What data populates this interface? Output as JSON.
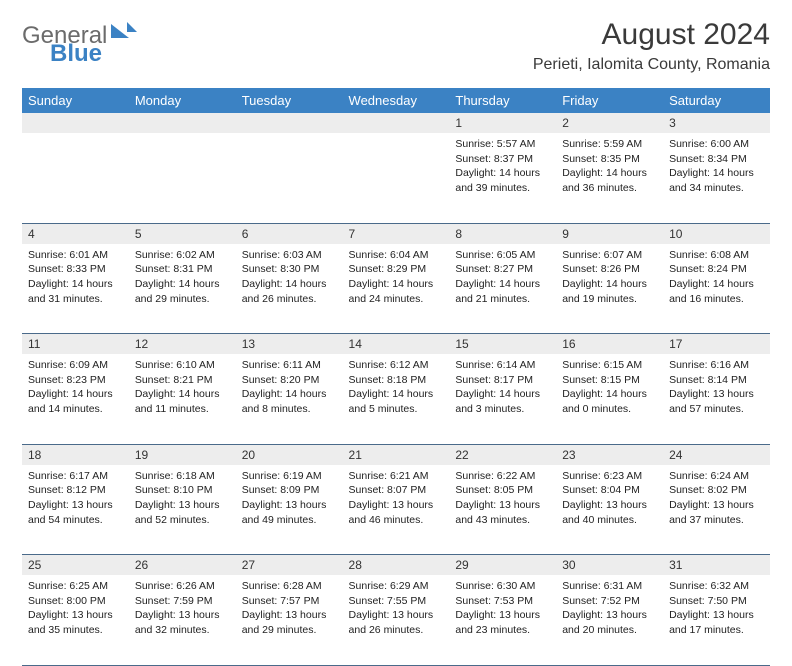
{
  "logo": {
    "part1": "General",
    "part2": "Blue"
  },
  "title": "August 2024",
  "location": "Perieti, Ialomita County, Romania",
  "weekdays": [
    "Sunday",
    "Monday",
    "Tuesday",
    "Wednesday",
    "Thursday",
    "Friday",
    "Saturday"
  ],
  "colors": {
    "header_bg": "#3b82c4",
    "header_text": "#ffffff",
    "daynum_bg": "#ededed",
    "cell_border": "#4a6a8a",
    "logo_gray": "#6b6b6b",
    "logo_blue": "#3b82c4"
  },
  "weeks": [
    [
      null,
      null,
      null,
      null,
      {
        "n": "1",
        "sunrise": "5:57 AM",
        "sunset": "8:37 PM",
        "daylight": "14 hours and 39 minutes."
      },
      {
        "n": "2",
        "sunrise": "5:59 AM",
        "sunset": "8:35 PM",
        "daylight": "14 hours and 36 minutes."
      },
      {
        "n": "3",
        "sunrise": "6:00 AM",
        "sunset": "8:34 PM",
        "daylight": "14 hours and 34 minutes."
      }
    ],
    [
      {
        "n": "4",
        "sunrise": "6:01 AM",
        "sunset": "8:33 PM",
        "daylight": "14 hours and 31 minutes."
      },
      {
        "n": "5",
        "sunrise": "6:02 AM",
        "sunset": "8:31 PM",
        "daylight": "14 hours and 29 minutes."
      },
      {
        "n": "6",
        "sunrise": "6:03 AM",
        "sunset": "8:30 PM",
        "daylight": "14 hours and 26 minutes."
      },
      {
        "n": "7",
        "sunrise": "6:04 AM",
        "sunset": "8:29 PM",
        "daylight": "14 hours and 24 minutes."
      },
      {
        "n": "8",
        "sunrise": "6:05 AM",
        "sunset": "8:27 PM",
        "daylight": "14 hours and 21 minutes."
      },
      {
        "n": "9",
        "sunrise": "6:07 AM",
        "sunset": "8:26 PM",
        "daylight": "14 hours and 19 minutes."
      },
      {
        "n": "10",
        "sunrise": "6:08 AM",
        "sunset": "8:24 PM",
        "daylight": "14 hours and 16 minutes."
      }
    ],
    [
      {
        "n": "11",
        "sunrise": "6:09 AM",
        "sunset": "8:23 PM",
        "daylight": "14 hours and 14 minutes."
      },
      {
        "n": "12",
        "sunrise": "6:10 AM",
        "sunset": "8:21 PM",
        "daylight": "14 hours and 11 minutes."
      },
      {
        "n": "13",
        "sunrise": "6:11 AM",
        "sunset": "8:20 PM",
        "daylight": "14 hours and 8 minutes."
      },
      {
        "n": "14",
        "sunrise": "6:12 AM",
        "sunset": "8:18 PM",
        "daylight": "14 hours and 5 minutes."
      },
      {
        "n": "15",
        "sunrise": "6:14 AM",
        "sunset": "8:17 PM",
        "daylight": "14 hours and 3 minutes."
      },
      {
        "n": "16",
        "sunrise": "6:15 AM",
        "sunset": "8:15 PM",
        "daylight": "14 hours and 0 minutes."
      },
      {
        "n": "17",
        "sunrise": "6:16 AM",
        "sunset": "8:14 PM",
        "daylight": "13 hours and 57 minutes."
      }
    ],
    [
      {
        "n": "18",
        "sunrise": "6:17 AM",
        "sunset": "8:12 PM",
        "daylight": "13 hours and 54 minutes."
      },
      {
        "n": "19",
        "sunrise": "6:18 AM",
        "sunset": "8:10 PM",
        "daylight": "13 hours and 52 minutes."
      },
      {
        "n": "20",
        "sunrise": "6:19 AM",
        "sunset": "8:09 PM",
        "daylight": "13 hours and 49 minutes."
      },
      {
        "n": "21",
        "sunrise": "6:21 AM",
        "sunset": "8:07 PM",
        "daylight": "13 hours and 46 minutes."
      },
      {
        "n": "22",
        "sunrise": "6:22 AM",
        "sunset": "8:05 PM",
        "daylight": "13 hours and 43 minutes."
      },
      {
        "n": "23",
        "sunrise": "6:23 AM",
        "sunset": "8:04 PM",
        "daylight": "13 hours and 40 minutes."
      },
      {
        "n": "24",
        "sunrise": "6:24 AM",
        "sunset": "8:02 PM",
        "daylight": "13 hours and 37 minutes."
      }
    ],
    [
      {
        "n": "25",
        "sunrise": "6:25 AM",
        "sunset": "8:00 PM",
        "daylight": "13 hours and 35 minutes."
      },
      {
        "n": "26",
        "sunrise": "6:26 AM",
        "sunset": "7:59 PM",
        "daylight": "13 hours and 32 minutes."
      },
      {
        "n": "27",
        "sunrise": "6:28 AM",
        "sunset": "7:57 PM",
        "daylight": "13 hours and 29 minutes."
      },
      {
        "n": "28",
        "sunrise": "6:29 AM",
        "sunset": "7:55 PM",
        "daylight": "13 hours and 26 minutes."
      },
      {
        "n": "29",
        "sunrise": "6:30 AM",
        "sunset": "7:53 PM",
        "daylight": "13 hours and 23 minutes."
      },
      {
        "n": "30",
        "sunrise": "6:31 AM",
        "sunset": "7:52 PM",
        "daylight": "13 hours and 20 minutes."
      },
      {
        "n": "31",
        "sunrise": "6:32 AM",
        "sunset": "7:50 PM",
        "daylight": "13 hours and 17 minutes."
      }
    ]
  ],
  "labels": {
    "sunrise": "Sunrise: ",
    "sunset": "Sunset: ",
    "daylight": "Daylight: "
  }
}
